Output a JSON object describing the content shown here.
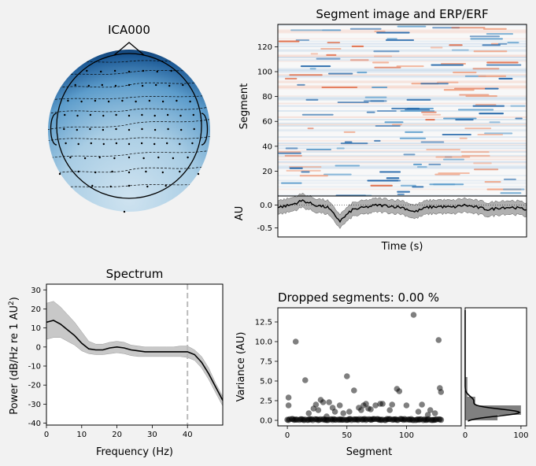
{
  "topomap": {
    "title": "ICA000"
  },
  "segment_image": {
    "title": "Segment image and ERP/ERF",
    "ylabel": "Segment",
    "yticks": [
      "20",
      "40",
      "60",
      "80",
      "100",
      "120"
    ]
  },
  "erp": {
    "ylabel": "AU",
    "xlabel": "Time (s)",
    "yticks": [
      "0.0",
      "-0.5"
    ]
  },
  "spectrum": {
    "title": "Spectrum",
    "ylabel_main": "Power (dB/Hz re 1 AU",
    "ylabel_sup": "2",
    "ylabel_end": ")",
    "xlabel": "Frequency (Hz)",
    "xticks": [
      "0",
      "10",
      "20",
      "30",
      "40"
    ],
    "yticks": [
      "30",
      "20",
      "10",
      "0",
      "-10",
      "-20",
      "-30",
      "-40"
    ]
  },
  "dropped": {
    "title": "Dropped segments: 0.00 %",
    "xlabel": "Segment",
    "ylabel": "Variance (AU)",
    "xticks": [
      "0",
      "50",
      "100"
    ],
    "yticks": [
      "0.0",
      "2.5",
      "5.0",
      "7.5",
      "10.0",
      "12.5"
    ],
    "hist_xticks": [
      "0",
      "100"
    ]
  },
  "chart_data": [
    {
      "type": "heatmap",
      "title": "Segment image and ERP/ERF",
      "ylabel": "Segment",
      "ylim": [
        0,
        138
      ],
      "colormap": "RdBu_r"
    },
    {
      "type": "line",
      "ylabel": "AU",
      "xlabel": "Time (s)",
      "ylim": [
        -0.7,
        0.2
      ],
      "x": [
        0,
        0.05,
        0.1,
        0.15,
        0.2,
        0.25,
        0.3,
        0.35,
        0.4,
        0.45,
        0.5,
        0.55,
        0.6,
        0.65,
        0.7,
        0.75,
        0.8,
        0.85,
        0.9,
        0.95,
        1.0
      ],
      "series": [
        {
          "values": [
            -0.05,
            0.0,
            0.1,
            0.0,
            -0.05,
            -0.35,
            -0.1,
            -0.05,
            0.0,
            -0.02,
            -0.05,
            -0.15,
            -0.05,
            -0.03,
            -0.05,
            0.0,
            -0.05,
            -0.1,
            -0.05,
            -0.05,
            -0.1
          ]
        }
      ],
      "band_halfwidth": 0.15
    },
    {
      "type": "line",
      "title": "Spectrum",
      "xlabel": "Frequency (Hz)",
      "xlim": [
        0,
        50
      ],
      "ylim": [
        -41,
        33
      ],
      "x": [
        0,
        2,
        4,
        6,
        8,
        10,
        12,
        14,
        16,
        18,
        20,
        22,
        24,
        26,
        28,
        30,
        32,
        34,
        36,
        38,
        40,
        42,
        44,
        46,
        48,
        50
      ],
      "series": [
        {
          "name": "mean",
          "values": [
            13,
            14,
            12,
            9,
            6,
            2,
            -1,
            -1.5,
            -1.5,
            -0.5,
            0,
            -0.5,
            -1.5,
            -2,
            -2.5,
            -2.5,
            -2.5,
            -2.5,
            -2.5,
            -2.5,
            -2.5,
            -4,
            -8,
            -14,
            -21,
            -28
          ]
        },
        {
          "name": "upper",
          "values": [
            23,
            24,
            21,
            17,
            13,
            8,
            3,
            1.5,
            1.5,
            2.5,
            3,
            2.5,
            1,
            0.5,
            0,
            0,
            0,
            0,
            0,
            0.5,
            0.5,
            -1.5,
            -5,
            -11,
            -19,
            -26
          ]
        },
        {
          "name": "lower",
          "values": [
            4,
            5,
            5,
            3,
            1,
            -2,
            -3.5,
            -4,
            -4,
            -3.5,
            -3,
            -3.5,
            -4.5,
            -5,
            -5,
            -5,
            -5,
            -5,
            -5,
            -5,
            -5.5,
            -7,
            -11,
            -17,
            -24,
            -31
          ]
        }
      ],
      "vline_x": 40
    },
    {
      "type": "scatter",
      "title": "Dropped segments: 0.00 %",
      "xlabel": "Segment",
      "ylabel": "Variance (AU)",
      "xlim": [
        -8,
        146
      ],
      "ylim": [
        -0.7,
        14.3
      ],
      "points": [
        [
          1,
          2.9
        ],
        [
          1,
          1.9
        ],
        [
          7,
          10.0
        ],
        [
          15,
          5.1
        ],
        [
          18,
          0.9
        ],
        [
          22,
          1.5
        ],
        [
          24,
          2.0
        ],
        [
          26,
          1.3
        ],
        [
          28,
          2.6
        ],
        [
          30,
          2.3
        ],
        [
          33,
          0.5
        ],
        [
          35,
          2.3
        ],
        [
          38,
          1.6
        ],
        [
          40,
          1.1
        ],
        [
          44,
          1.9
        ],
        [
          47,
          0.9
        ],
        [
          50,
          5.6
        ],
        [
          52,
          1.1
        ],
        [
          56,
          3.8
        ],
        [
          60,
          1.6
        ],
        [
          62,
          1.3
        ],
        [
          64,
          1.9
        ],
        [
          66,
          2.1
        ],
        [
          68,
          1.5
        ],
        [
          70,
          1.4
        ],
        [
          74,
          1.9
        ],
        [
          78,
          2.1
        ],
        [
          80,
          2.1
        ],
        [
          86,
          1.3
        ],
        [
          88,
          2.0
        ],
        [
          92,
          4.0
        ],
        [
          94,
          3.7
        ],
        [
          100,
          1.9
        ],
        [
          106,
          13.4
        ],
        [
          110,
          1.1
        ],
        [
          113,
          2.0
        ],
        [
          118,
          0.7
        ],
        [
          120,
          1.3
        ],
        [
          124,
          0.9
        ],
        [
          127,
          10.2
        ],
        [
          128,
          4.1
        ],
        [
          129,
          3.6
        ]
      ],
      "baseline_value": 0.1,
      "baseline_count": 140
    },
    {
      "type": "bar",
      "orientation": "horizontal",
      "xlim": [
        0,
        110
      ],
      "bins": [
        {
          "range": [
            0.0,
            0.7
          ],
          "count": 58
        },
        {
          "range": [
            0.7,
            1.9
          ],
          "count": 100
        },
        {
          "range": [
            1.9,
            3.0
          ],
          "count": 18
        },
        {
          "range": [
            3.0,
            5.5
          ],
          "count": 4
        }
      ]
    }
  ]
}
